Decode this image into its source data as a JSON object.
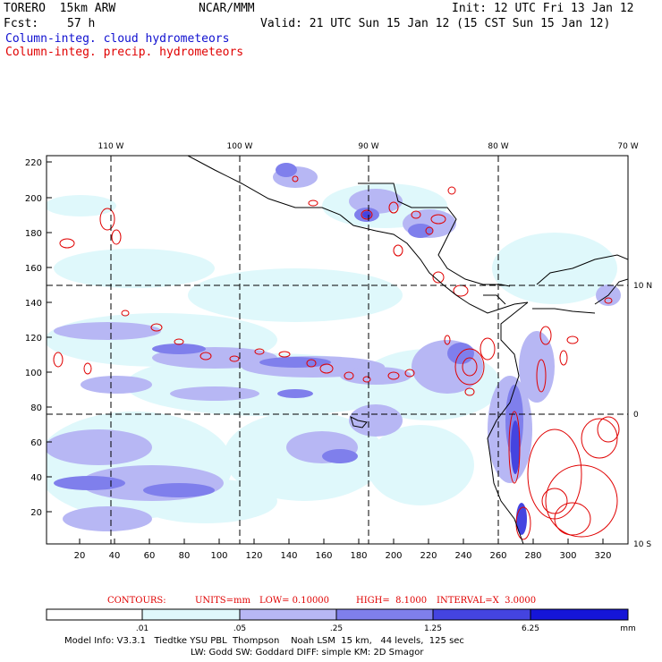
{
  "header": {
    "model": "TORERO  15km ARW",
    "center": "NCAR/MMM",
    "init": "Init: 12 UTC Fri 13 Jan 12",
    "fcst_label": "Fcst:",
    "fcst_value": "57 h",
    "valid": "Valid: 21 UTC Sun 15 Jan 12 (15 CST Sun 15 Jan 12)",
    "legend_cloud": "Column-integ. cloud hydrometeors",
    "legend_precip": "Column-integ. precip. hydrometeors"
  },
  "map": {
    "lon_labels": [
      "110 W",
      "100 W",
      "90 W",
      "80 W",
      "70 W"
    ],
    "lat_labels": [
      "10 N",
      "0",
      "10 S"
    ],
    "y_ticks": [
      "220",
      "200",
      "180",
      "160",
      "140",
      "120",
      "100",
      "80",
      "60",
      "40",
      "20"
    ],
    "x_ticks": [
      "20",
      "40",
      "60",
      "80",
      "100",
      "120",
      "140",
      "160",
      "180",
      "200",
      "220",
      "240",
      "260",
      "280",
      "300",
      "320"
    ],
    "colors": {
      "shade1": "#dff8fb",
      "shade2": "#b7b7f4",
      "shade3": "#7f7fec",
      "shade4": "#4444e0",
      "shade5": "#1515d8",
      "contour": "#e00000",
      "coast": "#000000"
    }
  },
  "contour_info": {
    "label": "CONTOURS:",
    "units": "UNITS=mm",
    "low": "LOW= 0.10000",
    "high": "HIGH=  8.1000",
    "interval": "INTERVAL=X  3.0000"
  },
  "colorbar": {
    "labels": [
      ".01",
      ".05",
      ".25",
      "1.25",
      "6.25"
    ],
    "unit": "mm",
    "colors": [
      "#ffffff",
      "#dff8fb",
      "#b7b7f4",
      "#7f7fec",
      "#4444e0",
      "#1515d8"
    ]
  },
  "footer": {
    "line1": "Model Info: V3.3.1   Tiedtke YSU PBL  Thompson    Noah LSM  15 km,   44 levels,  125 sec",
    "line2": "LW: Godd SW: Goddard DIFF: simple KM: 2D Smagor"
  }
}
